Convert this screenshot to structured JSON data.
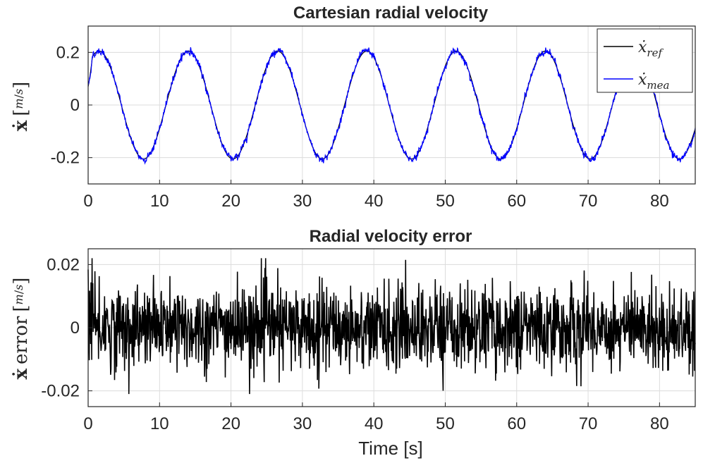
{
  "chart_data": [
    {
      "type": "line",
      "title": "Cartesian radial velocity",
      "ylabel": "ẋ [m/s]",
      "xlim": [
        0,
        85
      ],
      "ylim": [
        -0.3,
        0.3
      ],
      "xticks": [
        0,
        10,
        20,
        30,
        40,
        50,
        60,
        70,
        80
      ],
      "yticks": [
        0.2,
        0,
        -0.2
      ],
      "ytick_labels": [
        "0.2",
        "0",
        "-0.2"
      ],
      "grid": true,
      "legend_position": "top-right",
      "legend": [
        "ẋ_ref",
        "ẋ_mea"
      ],
      "series": [
        {
          "name": "ẋ_ref",
          "color": "#000000",
          "kind": "sinusoid",
          "amplitude": 0.205,
          "period": 12.5,
          "phase_offset": 0.7,
          "values": []
        },
        {
          "name": "ẋ_mea",
          "color": "#0000ff",
          "kind": "sinusoid_noisy",
          "amplitude": 0.205,
          "period": 12.5,
          "phase_offset": 0.7,
          "noise": 0.01,
          "values": []
        }
      ]
    },
    {
      "type": "line",
      "title": "Radial velocity error",
      "ylabel": "ẋ error [m/s]",
      "xlabel": "Time [s]",
      "xlim": [
        0,
        85
      ],
      "ylim": [
        -0.025,
        0.025
      ],
      "xticks": [
        0,
        10,
        20,
        30,
        40,
        50,
        60,
        70,
        80
      ],
      "yticks": [
        0.02,
        0,
        -0.02
      ],
      "ytick_labels": [
        "0.02",
        "0",
        "-0.02"
      ],
      "grid": true,
      "series": [
        {
          "name": "",
          "color": "#000000",
          "kind": "noise",
          "std": 0.0065,
          "values": []
        }
      ]
    }
  ]
}
